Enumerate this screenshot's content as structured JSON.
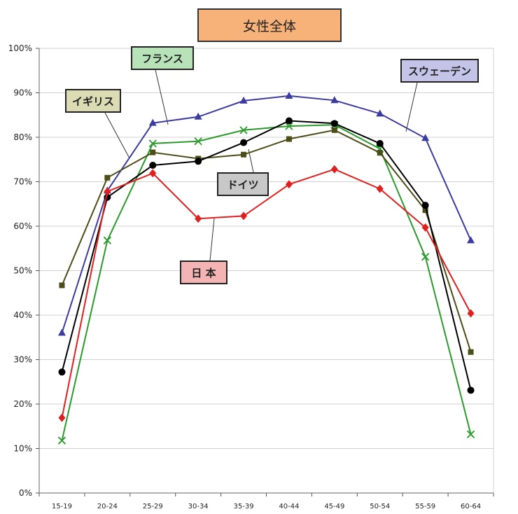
{
  "chart_data": {
    "type": "line",
    "title": "女性全体",
    "categories": [
      "15-19",
      "20-24",
      "25-29",
      "30-34",
      "35-39",
      "40-44",
      "45-49",
      "50-54",
      "55-59",
      "60-64"
    ],
    "y_ticks": [
      "0%",
      "10%",
      "20%",
      "30%",
      "40%",
      "50%",
      "60%",
      "70%",
      "80%",
      "90%",
      "100%"
    ],
    "ylim": [
      0,
      100
    ],
    "grid": true,
    "series": [
      {
        "name": "スウェーデン",
        "color": "#3b3ba0",
        "marker": "triangle",
        "values": [
          36,
          68,
          83.2,
          84.6,
          88.2,
          89.3,
          88.3,
          85.3,
          79.8,
          56.8
        ]
      },
      {
        "name": "フランス",
        "color": "#2a9a2a",
        "marker": "x",
        "values": [
          11.8,
          56.8,
          78.6,
          79.1,
          81.6,
          82.5,
          82.8,
          77.4,
          53.1,
          13.2
        ]
      },
      {
        "name": "イギリス",
        "color": "#4d4d18",
        "marker": "square",
        "values": [
          46.7,
          70.9,
          76.6,
          75.2,
          76.1,
          79.6,
          81.6,
          76.5,
          63.6,
          31.7
        ]
      },
      {
        "name": "ドイツ",
        "color": "#000000",
        "marker": "circle",
        "values": [
          27.2,
          66.5,
          73.7,
          74.6,
          78.8,
          83.7,
          83.1,
          78.6,
          64.7,
          23.1
        ]
      },
      {
        "name": "日本",
        "color": "#e0201f",
        "marker": "diamond",
        "values": [
          16.9,
          67.8,
          71.9,
          61.7,
          62.3,
          69.4,
          72.8,
          68.4,
          59.7,
          40.4
        ]
      }
    ],
    "callouts": {
      "france": "フランス",
      "sweden": "スウェーデン",
      "uk": "イギリス",
      "germany": "ドイツ",
      "japan": "日 本"
    }
  }
}
